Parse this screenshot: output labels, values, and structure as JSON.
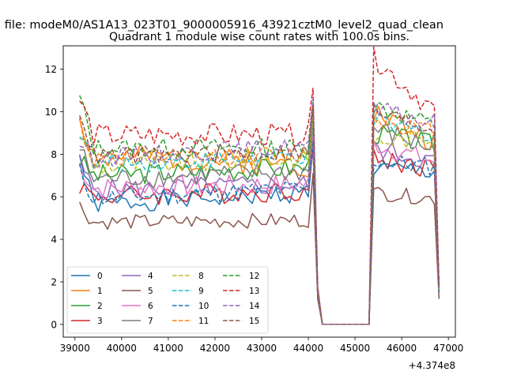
{
  "figure": {
    "suptitle": "n file: modeM0/AS1A13_023T01_9000005916_43921cztM0_level2_quad_clean"
  },
  "chart_data": {
    "type": "line",
    "title": "Quadrant 1 module wise count rates with 100.0s bins.",
    "xlabel": "",
    "ylabel": "",
    "x_offset_label": "+4.374e8",
    "xlim": [
      38750,
      47150
    ],
    "ylim": [
      -0.6,
      13.1
    ],
    "x_ticks": [
      39000,
      40000,
      41000,
      42000,
      43000,
      44000,
      45000,
      46000,
      47000
    ],
    "y_ticks": [
      0,
      2,
      4,
      6,
      8,
      10,
      12
    ],
    "grid": false,
    "legend": {
      "placement": "lower-left",
      "columns": 4
    },
    "x_segments": [
      {
        "start": 39100,
        "end": 44100,
        "step": 100
      },
      {
        "start": 44200,
        "end": 45300,
        "step": 100
      },
      {
        "start": 45400,
        "end": 46800,
        "step": 100
      }
    ],
    "series": [
      {
        "name": "0",
        "color": "#1f77b4",
        "dash": "solid",
        "base": [
          7.9,
          5.6,
          6.2,
          7.3,
          1.5
        ],
        "amp": 0.45,
        "seed": 1
      },
      {
        "name": "1",
        "color": "#ff7f0e",
        "dash": "solid",
        "base": [
          9.8,
          8.0,
          7.5,
          10.0,
          1.6
        ],
        "amp": 0.6,
        "seed": 2
      },
      {
        "name": "2",
        "color": "#2ca02c",
        "dash": "solid",
        "base": [
          7.7,
          7.0,
          7.4,
          9.0,
          1.5
        ],
        "amp": 0.5,
        "seed": 3
      },
      {
        "name": "3",
        "color": "#d62728",
        "dash": "solid",
        "base": [
          6.6,
          6.0,
          6.3,
          7.8,
          1.5
        ],
        "amp": 0.5,
        "seed": 4
      },
      {
        "name": "4",
        "color": "#9467bd",
        "dash": "solid",
        "base": [
          7.6,
          6.3,
          6.6,
          8.3,
          1.5
        ],
        "amp": 0.5,
        "seed": 5
      },
      {
        "name": "5",
        "color": "#8c564b",
        "dash": "solid",
        "base": [
          5.6,
          4.8,
          4.9,
          6.2,
          1.2
        ],
        "amp": 0.35,
        "seed": 6
      },
      {
        "name": "6",
        "color": "#e377c2",
        "dash": "solid",
        "base": [
          7.5,
          6.4,
          6.6,
          8.5,
          1.5
        ],
        "amp": 0.5,
        "seed": 7
      },
      {
        "name": "7",
        "color": "#7f7f7f",
        "dash": "solid",
        "base": [
          8.3,
          6.8,
          7.2,
          9.2,
          1.6
        ],
        "amp": 0.5,
        "seed": 8
      },
      {
        "name": "8",
        "color": "#bcbd22",
        "dash": "dashed",
        "base": [
          9.0,
          7.4,
          7.8,
          8.6,
          1.6
        ],
        "amp": 0.45,
        "seed": 9
      },
      {
        "name": "9",
        "color": "#17becf",
        "dash": "dashed",
        "base": [
          9.2,
          7.5,
          7.9,
          9.5,
          1.6
        ],
        "amp": 0.45,
        "seed": 10
      },
      {
        "name": "10",
        "color": "#1f77b4",
        "dash": "dashed",
        "base": [
          7.2,
          5.9,
          6.4,
          7.7,
          1.5
        ],
        "amp": 0.45,
        "seed": 11
      },
      {
        "name": "11",
        "color": "#ff7f0e",
        "dash": "dashed",
        "base": [
          9.5,
          7.7,
          8.0,
          9.7,
          1.6
        ],
        "amp": 0.45,
        "seed": 12
      },
      {
        "name": "12",
        "color": "#2ca02c",
        "dash": "dashed",
        "base": [
          10.7,
          8.3,
          8.3,
          10.3,
          1.7
        ],
        "amp": 0.45,
        "seed": 13
      },
      {
        "name": "13",
        "color": "#d62728",
        "dash": "dashed",
        "base": [
          10.6,
          8.9,
          8.9,
          12.5,
          1.8
        ],
        "amp": 0.55,
        "seed": 14
      },
      {
        "name": "14",
        "color": "#9467bd",
        "dash": "dashed",
        "base": [
          8.6,
          7.8,
          8.4,
          10.1,
          1.7
        ],
        "amp": 0.45,
        "seed": 15
      },
      {
        "name": "15",
        "color": "#8c564b",
        "dash": "dashed",
        "base": [
          10.2,
          7.9,
          8.1,
          10.0,
          1.7
        ],
        "amp": 0.45,
        "seed": 16
      }
    ]
  }
}
